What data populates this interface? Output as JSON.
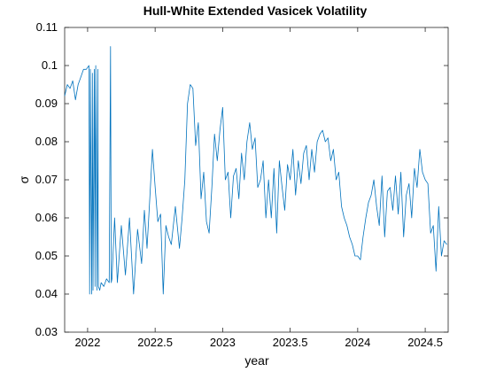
{
  "chart_data": {
    "type": "line",
    "title": "Hull-White Extended Vasicek Volatility",
    "xlabel": "year",
    "ylabel": "σ",
    "xlim": [
      2021.83,
      2024.67
    ],
    "ylim": [
      0.03,
      0.11
    ],
    "xticks": [
      2022,
      2022.5,
      2023,
      2023.5,
      2024,
      2024.5
    ],
    "xtick_labels": [
      "2022",
      "2022.5",
      "2023",
      "2023.5",
      "2024",
      "2024.5"
    ],
    "yticks": [
      0.03,
      0.04,
      0.05,
      0.06,
      0.07,
      0.08,
      0.09,
      0.1,
      0.11
    ],
    "ytick_labels": [
      "0.03",
      "0.04",
      "0.05",
      "0.06",
      "0.07",
      "0.08",
      "0.09",
      "0.1",
      "0.11"
    ],
    "grid": false,
    "legend": "none",
    "series": [
      {
        "color": "#0072BD",
        "x": [
          2021.83,
          2021.85,
          2021.87,
          2021.89,
          2021.91,
          2021.93,
          2021.95,
          2021.97,
          2021.99,
          2022.01,
          2022.015,
          2022.02,
          2022.03,
          2022.035,
          2022.04,
          2022.05,
          2022.055,
          2022.06,
          2022.07,
          2022.075,
          2022.08,
          2022.09,
          2022.1,
          2022.12,
          2022.14,
          2022.16,
          2022.17,
          2022.175,
          2022.18,
          2022.2,
          2022.22,
          2022.25,
          2022.28,
          2022.31,
          2022.34,
          2022.37,
          2022.4,
          2022.42,
          2022.44,
          2022.46,
          2022.48,
          2022.5,
          2022.52,
          2022.54,
          2022.56,
          2022.58,
          2022.6,
          2022.62,
          2022.65,
          2022.68,
          2022.7,
          2022.72,
          2022.74,
          2022.76,
          2022.78,
          2022.8,
          2022.82,
          2022.84,
          2022.86,
          2022.88,
          2022.9,
          2022.92,
          2022.94,
          2022.96,
          2022.98,
          2023.0,
          2023.02,
          2023.04,
          2023.06,
          2023.08,
          2023.1,
          2023.12,
          2023.14,
          2023.16,
          2023.18,
          2023.2,
          2023.22,
          2023.24,
          2023.26,
          2023.28,
          2023.3,
          2023.32,
          2023.34,
          2023.36,
          2023.38,
          2023.4,
          2023.42,
          2023.44,
          2023.46,
          2023.48,
          2023.5,
          2023.52,
          2023.54,
          2023.56,
          2023.58,
          2023.6,
          2023.62,
          2023.64,
          2023.66,
          2023.68,
          2023.7,
          2023.72,
          2023.74,
          2023.76,
          2023.78,
          2023.8,
          2023.82,
          2023.84,
          2023.86,
          2023.88,
          2023.9,
          2023.92,
          2023.94,
          2023.96,
          2023.98,
          2024.0,
          2024.02,
          2024.04,
          2024.06,
          2024.08,
          2024.1,
          2024.12,
          2024.14,
          2024.16,
          2024.18,
          2024.2,
          2024.22,
          2024.24,
          2024.26,
          2024.28,
          2024.3,
          2024.32,
          2024.34,
          2024.36,
          2024.38,
          2024.4,
          2024.42,
          2024.44,
          2024.46,
          2024.48,
          2024.5,
          2024.52,
          2024.54,
          2024.56,
          2024.58,
          2024.6,
          2024.62,
          2024.64,
          2024.66
        ],
        "y": [
          0.092,
          0.095,
          0.094,
          0.096,
          0.091,
          0.095,
          0.097,
          0.099,
          0.099,
          0.1,
          0.04,
          0.099,
          0.04,
          0.098,
          0.041,
          0.099,
          0.042,
          0.1,
          0.041,
          0.099,
          0.042,
          0.041,
          0.043,
          0.042,
          0.044,
          0.043,
          0.105,
          0.043,
          0.044,
          0.06,
          0.043,
          0.058,
          0.045,
          0.06,
          0.04,
          0.057,
          0.048,
          0.062,
          0.052,
          0.065,
          0.078,
          0.068,
          0.059,
          0.061,
          0.04,
          0.058,
          0.055,
          0.053,
          0.063,
          0.052,
          0.06,
          0.07,
          0.09,
          0.095,
          0.094,
          0.079,
          0.085,
          0.065,
          0.072,
          0.059,
          0.056,
          0.068,
          0.082,
          0.075,
          0.083,
          0.089,
          0.07,
          0.072,
          0.06,
          0.071,
          0.073,
          0.065,
          0.077,
          0.07,
          0.08,
          0.085,
          0.078,
          0.081,
          0.068,
          0.07,
          0.075,
          0.06,
          0.07,
          0.06,
          0.073,
          0.056,
          0.075,
          0.068,
          0.062,
          0.074,
          0.07,
          0.078,
          0.066,
          0.075,
          0.069,
          0.077,
          0.079,
          0.07,
          0.078,
          0.072,
          0.08,
          0.082,
          0.083,
          0.08,
          0.081,
          0.075,
          0.078,
          0.07,
          0.072,
          0.063,
          0.06,
          0.058,
          0.055,
          0.053,
          0.05,
          0.05,
          0.049,
          0.055,
          0.06,
          0.064,
          0.066,
          0.07,
          0.063,
          0.058,
          0.071,
          0.055,
          0.067,
          0.068,
          0.062,
          0.071,
          0.061,
          0.072,
          0.055,
          0.066,
          0.069,
          0.06,
          0.073,
          0.068,
          0.078,
          0.072,
          0.07,
          0.069,
          0.056,
          0.058,
          0.046,
          0.063,
          0.05,
          0.054,
          0.053
        ]
      }
    ]
  }
}
